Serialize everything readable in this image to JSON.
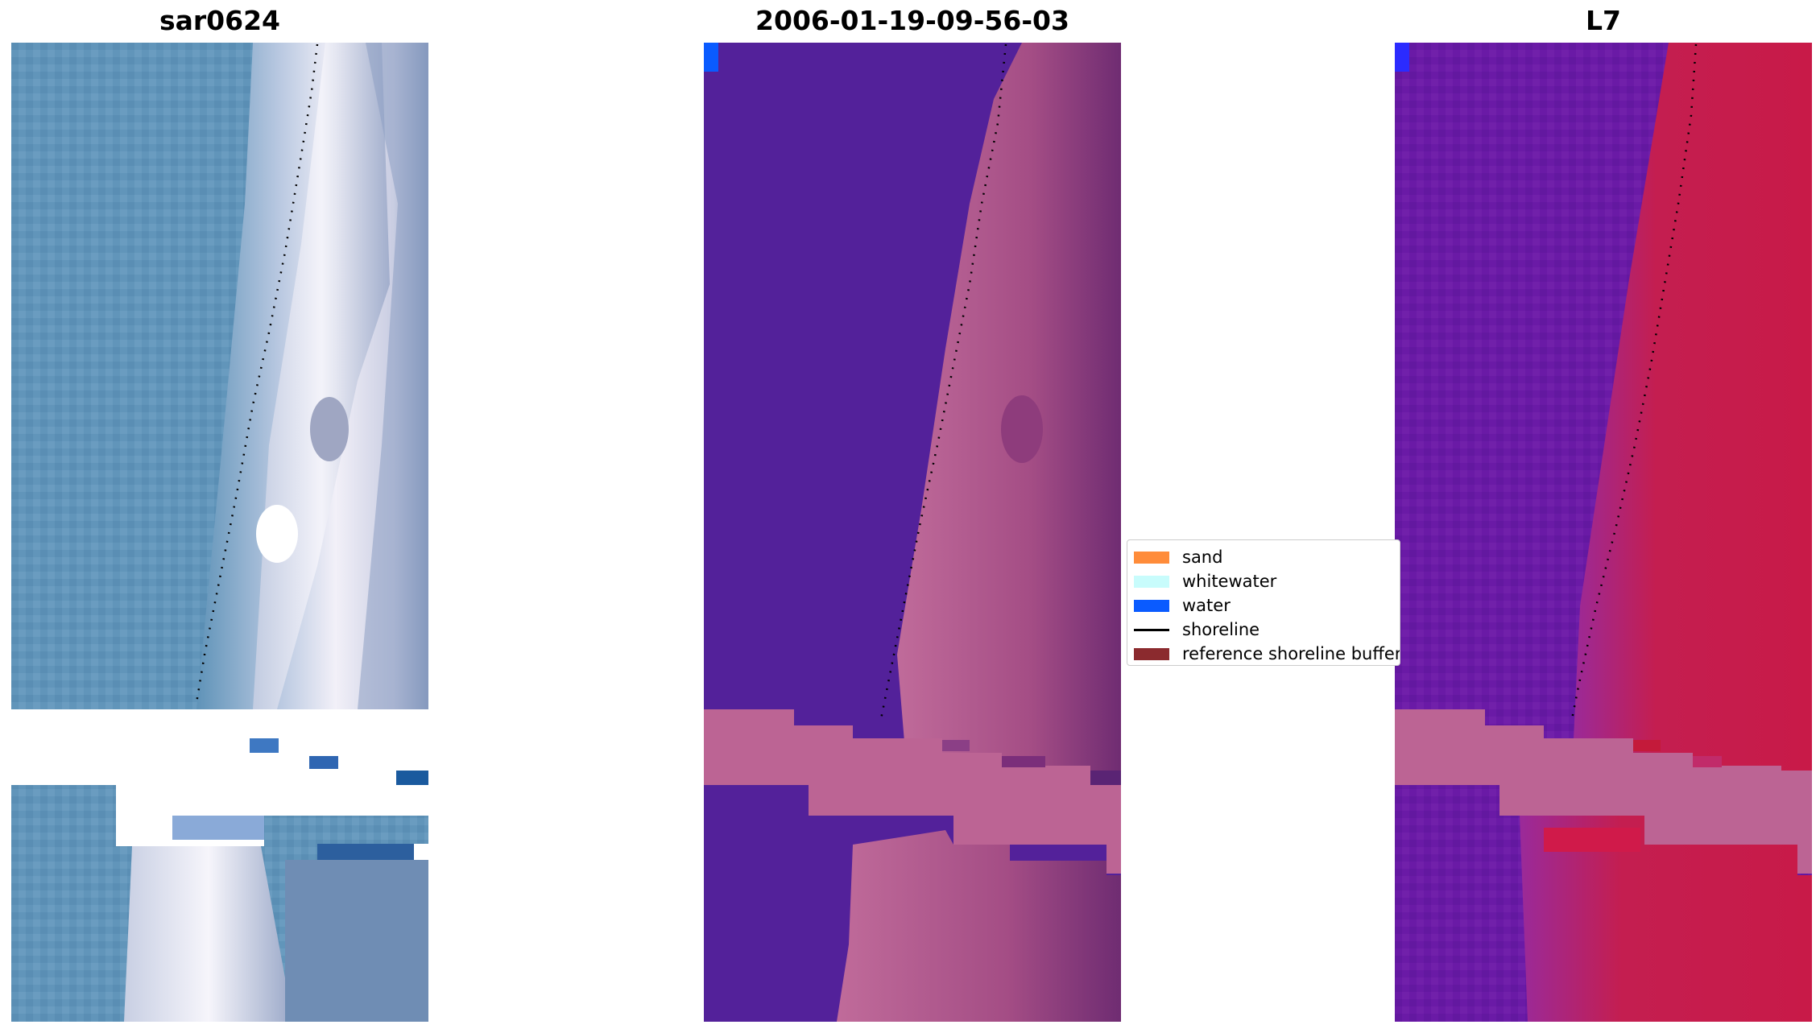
{
  "panels": [
    {
      "title": "sar0624"
    },
    {
      "title": "2006-01-19-09-56-03"
    },
    {
      "title": "L7"
    }
  ],
  "legend": {
    "items": [
      {
        "label": "sand",
        "kind": "patch",
        "color": "#ff8c3a"
      },
      {
        "label": "whitewater",
        "kind": "patch",
        "color": "#c8fcfc"
      },
      {
        "label": "water",
        "kind": "patch",
        "color": "#0a5bff"
      },
      {
        "label": "shoreline",
        "kind": "line",
        "color": "#000000"
      },
      {
        "label": "reference shoreline buffer",
        "kind": "patch",
        "color": "#8b2a2e"
      }
    ]
  },
  "colors": {
    "rgb_ocean": "#5f93b8",
    "rgb_surf": "#e8e6f2",
    "class_water_overlay": "#53219a",
    "class_land_overlay": "#b7608f",
    "nir_water": "#6a1aa6",
    "nir_land": "#c5184b",
    "cloud_mask": "#bc6494",
    "shoreline_dots": "#000000"
  }
}
